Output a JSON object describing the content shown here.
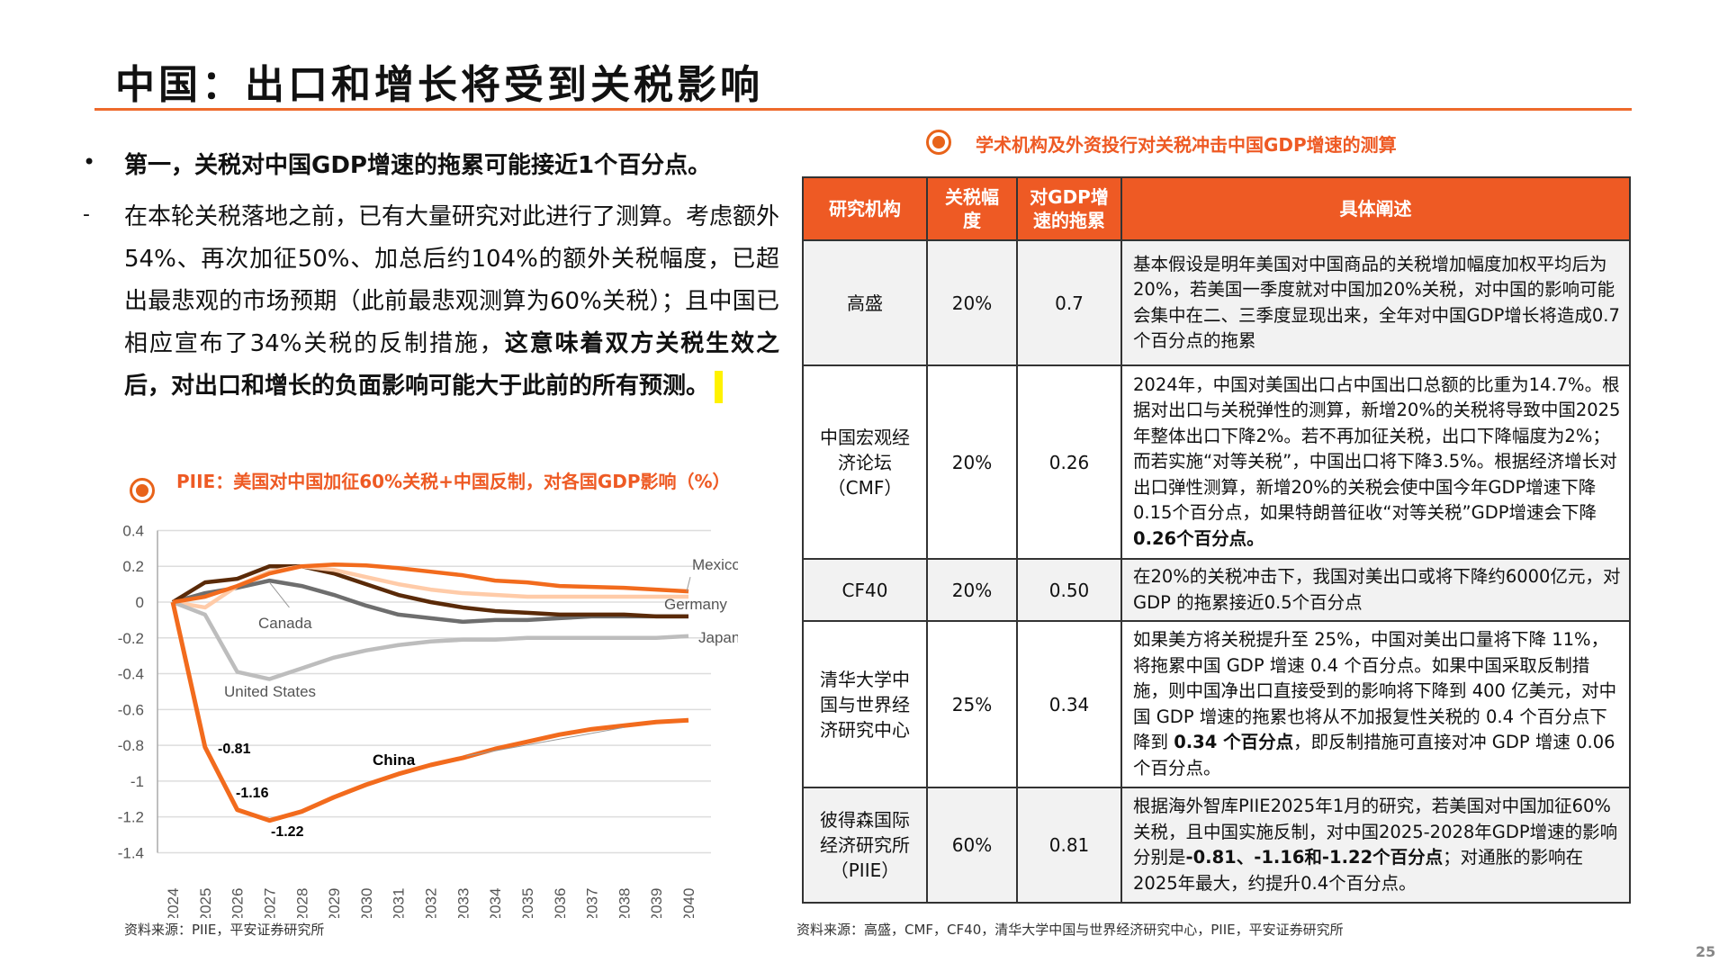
{
  "title": "中国：出口和增长将受到关税影响",
  "bullet": "第一，关税对中国GDP增速的拖累可能接近1个百分点。",
  "paragraph": {
    "normal": "在本轮关税落地之前，已有大量研究对此进行了测算。考虑额外54%、再次加征50%、加总后约104%的额外关税幅度，已超出最悲观的市场预期（此前最悲观测算为60%关税）；且中国已相应宣布了34%关税的反制措施，",
    "bold": "这意味着双方关税生效之后，对出口和增长的负面影响可能大于此前的所有预测。"
  },
  "chart_heading": "PIIE：美国对中国加征60%关税+中国反制，对各国GDP影响（%）",
  "table_heading": "学术机构及外资投行对关税冲击中国GDP增速的测算",
  "table": {
    "headers": [
      "研究机构",
      "关税幅度",
      "对GDP增速的拖累",
      "具体阐述"
    ],
    "rows": [
      {
        "inst": "高盛",
        "rate": "20%",
        "drag": "0.7",
        "desc": [
          {
            "t": "基本假设是明年美国对中国商品的关税增加幅度加权平均后为20%，若美国一季度就对中国加20%关税，对中国的影响可能会集中在二、三季度显现出来，全年对中国GDP增长将造成0.7个百分点的拖累",
            "b": false
          }
        ]
      },
      {
        "inst": "中国宏观经济论坛（CMF）",
        "rate": "20%",
        "drag": "0.26",
        "desc": [
          {
            "t": "2024年，中国对美国出口占中国出口总额的比重为14.7%。根据对出口与关税弹性的测算，新增20%的关税将导致中国2025年整体出口下降2%。若不再加征关税，出口下降幅度为2%；而若实施“对等关税”，中国出口将下降3.5%。根据经济增长对出口弹性测算，新增20%的关税会使中国今年GDP增速下降0.15个百分点，如果特朗普征收“对等关税”GDP增速会下降",
            "b": false
          },
          {
            "t": "0.26个百分点。",
            "b": true
          }
        ]
      },
      {
        "inst": "CF40",
        "rate": "20%",
        "drag": "0.50",
        "desc": [
          {
            "t": "在20%的关税冲击下，我国对美出口或将下降约6000亿元，对 GDP 的拖累接近0.5个百分点",
            "b": false
          }
        ]
      },
      {
        "inst": "清华大学中国与世界经济研究中心",
        "rate": "25%",
        "drag": "0.34",
        "desc": [
          {
            "t": "如果美方将关税提升至 25%，中国对美出口量将下降 11%，将拖累中国 GDP 增速 0.4 个百分点。如果中国采取反制措施，则中国净出口直接受到的影响将下降到 400 亿美元，对中国 GDP 增速的拖累也将从不加报复性关税的 0.4 个百分点下降到 ",
            "b": false
          },
          {
            "t": "0.34 个百分点",
            "b": true
          },
          {
            "t": "，即反制措施可直接对冲 GDP 增速 0.06 个百分点。",
            "b": false
          }
        ]
      },
      {
        "inst": "彼得森国际经济研究所（PIIE）",
        "rate": "60%",
        "drag": "0.81",
        "desc": [
          {
            "t": "根据海外智库PIIE2025年1月的研究，若美国对中国加征60%关税，且中国实施反制，对中国2025-2028年GDP增速的影响分别是",
            "b": false
          },
          {
            "t": "-0.81、-1.16和-1.22个百分点",
            "b": true
          },
          {
            "t": "；对通胀的影响在2025年最大，约提升0.4个百分点。",
            "b": false
          }
        ]
      }
    ]
  },
  "source_left": "资料来源：PIIE，平安证券研究所",
  "source_right": "资料来源：高盛，CMF，CF40，清华大学中国与世界经济研究中心，PIIE，平安证券研究所",
  "page_number": "25",
  "colors": {
    "accent": "#EE5A24",
    "table_header": "#EE5A24",
    "highlight": "#FFF200"
  },
  "chart_data": {
    "type": "line",
    "x": [
      2024,
      2025,
      2026,
      2027,
      2028,
      2029,
      2030,
      2031,
      2032,
      2033,
      2034,
      2035,
      2036,
      2037,
      2038,
      2039,
      2040
    ],
    "ylim": [
      -1.4,
      0.4
    ],
    "yticks": [
      "0.4",
      "0.2",
      "0",
      "-0.2",
      "-0.4",
      "-0.6",
      "-0.8",
      "-1",
      "-1.2",
      "-1.4"
    ],
    "grid": true,
    "series": [
      {
        "name": "Canada",
        "color": "#6E6E6E",
        "values": [
          0,
          0.05,
          0.08,
          0.12,
          0.09,
          0.04,
          -0.02,
          -0.07,
          -0.09,
          -0.11,
          -0.1,
          -0.1,
          -0.09,
          -0.08,
          -0.08,
          -0.08,
          -0.08
        ]
      },
      {
        "name": "Japan",
        "color": "#5A2A08",
        "values": [
          0,
          0.11,
          0.13,
          0.2,
          0.2,
          0.16,
          0.1,
          0.04,
          0.0,
          -0.03,
          -0.05,
          -0.06,
          -0.07,
          -0.07,
          -0.07,
          -0.08,
          -0.08
        ]
      },
      {
        "name": "Germany",
        "color": "#FFCBA8",
        "values": [
          0,
          -0.03,
          0.09,
          0.17,
          0.2,
          0.18,
          0.14,
          0.1,
          0.07,
          0.05,
          0.04,
          0.03,
          0.03,
          0.03,
          0.03,
          0.03,
          0.03
        ]
      },
      {
        "name": "United States",
        "color": "#BDBDBD",
        "values": [
          0,
          -0.07,
          -0.39,
          -0.43,
          -0.37,
          -0.31,
          -0.27,
          -0.24,
          -0.22,
          -0.21,
          -0.21,
          -0.2,
          -0.2,
          -0.2,
          -0.2,
          -0.2,
          -0.19
        ]
      },
      {
        "name": "Mexico",
        "color": "#F26B1D",
        "values": [
          0,
          0.03,
          0.09,
          0.16,
          0.2,
          0.21,
          0.205,
          0.19,
          0.17,
          0.15,
          0.12,
          0.11,
          0.09,
          0.085,
          0.08,
          0.07,
          0.06
        ]
      },
      {
        "name": "China",
        "color": "#F26B1D",
        "values": [
          0,
          -0.81,
          -1.16,
          -1.22,
          -1.17,
          -1.09,
          -1.02,
          -0.96,
          -0.91,
          -0.87,
          -0.82,
          -0.78,
          -0.74,
          -0.71,
          -0.69,
          -0.67,
          -0.66
        ]
      }
    ],
    "annotations": [
      "-0.81",
      "-1.16",
      "-1.22"
    ]
  }
}
